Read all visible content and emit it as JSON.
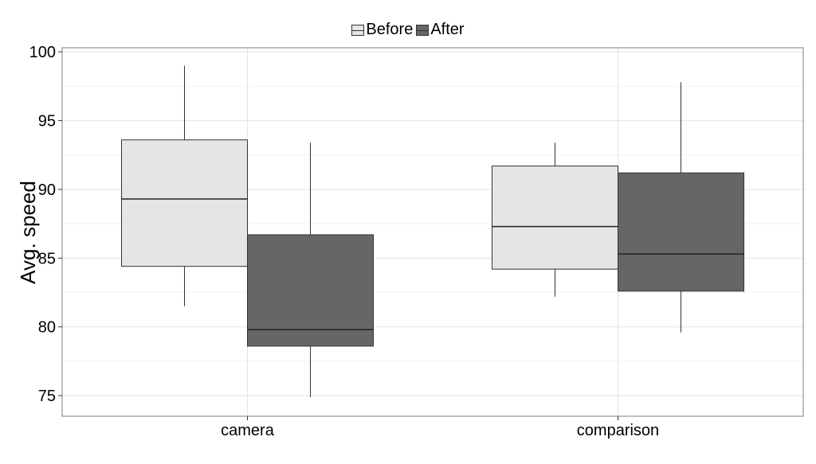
{
  "chart_data": {
    "type": "boxplot",
    "categories": [
      "camera",
      "comparison"
    ],
    "ylabel": "Avg. speed",
    "xlabel": "",
    "ylim": [
      73.5,
      100.3
    ],
    "yticks": [
      75,
      80,
      85,
      90,
      95,
      100
    ],
    "grid": true,
    "legend_position": "top",
    "series": [
      {
        "name": "Before",
        "color": "#e5e5e5",
        "boxes": [
          {
            "category": "camera",
            "min": 81.5,
            "q1": 84.4,
            "median": 89.3,
            "q3": 93.6,
            "max": 99.0
          },
          {
            "category": "comparison",
            "min": 82.2,
            "q1": 84.2,
            "median": 87.3,
            "q3": 91.7,
            "max": 93.4
          }
        ]
      },
      {
        "name": "After",
        "color": "#666666",
        "boxes": [
          {
            "category": "camera",
            "min": 74.9,
            "q1": 78.6,
            "median": 79.8,
            "q3": 86.7,
            "max": 93.4
          },
          {
            "category": "comparison",
            "min": 79.6,
            "q1": 82.6,
            "median": 85.3,
            "q3": 91.2,
            "max": 97.8
          }
        ]
      }
    ]
  }
}
